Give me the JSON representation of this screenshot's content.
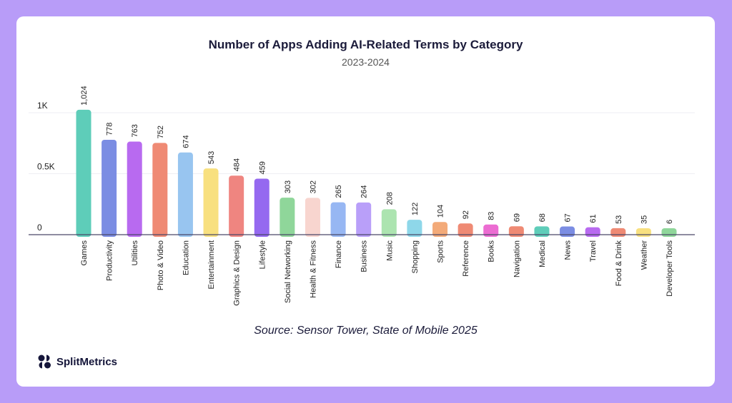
{
  "chart_data": {
    "type": "bar",
    "title": "Number of Apps Adding AI-Related Terms by Category",
    "subtitle": "2023-2024",
    "xlabel": "",
    "ylabel": "",
    "ylim": [
      0,
      1100
    ],
    "yticks": [
      {
        "value": 0,
        "label": "0"
      },
      {
        "value": 500,
        "label": "0.5K"
      },
      {
        "value": 1000,
        "label": "1K"
      }
    ],
    "grid": true,
    "categories": [
      "Games",
      "Productivity",
      "Utilities",
      "Photo & Video",
      "Education",
      "Entertainment",
      "Graphics & Design",
      "Lifestyle",
      "Social Networking",
      "Health & Fitness",
      "Finance",
      "Business",
      "Music",
      "Shopping",
      "Sports",
      "Reference",
      "Books",
      "Navigation",
      "Medical",
      "News",
      "Travel",
      "Food & Drink",
      "Weather",
      "Developer Tools"
    ],
    "values": [
      1024,
      778,
      763,
      752,
      674,
      543,
      484,
      459,
      303,
      302,
      265,
      264,
      208,
      122,
      104,
      92,
      83,
      69,
      68,
      67,
      61,
      53,
      35,
      6
    ],
    "data_labels": [
      "1,024",
      "778",
      "763",
      "752",
      "674",
      "543",
      "484",
      "459",
      "303",
      "302",
      "265",
      "264",
      "208",
      "122",
      "104",
      "92",
      "83",
      "69",
      "68",
      "67",
      "61",
      "53",
      "35",
      "6"
    ],
    "colors": [
      "#5ecdb9",
      "#7b8de3",
      "#b86af0",
      "#ef8a74",
      "#98c5f0",
      "#f8e07f",
      "#ef8580",
      "#9569f0",
      "#8fd69a",
      "#f8d5cf",
      "#97b7f3",
      "#b99ff9",
      "#ace4b0",
      "#8ed7e9",
      "#f3aa79",
      "#ef8a74",
      "#ec6cd2",
      "#ef8a74",
      "#5ecdb9",
      "#7b8de3",
      "#b86af0",
      "#ef8a74",
      "#f8e07f",
      "#8fd69a"
    ]
  },
  "source": "Source: Sensor Tower, State of Mobile 2025",
  "brand": {
    "name": "SplitMetrics"
  }
}
